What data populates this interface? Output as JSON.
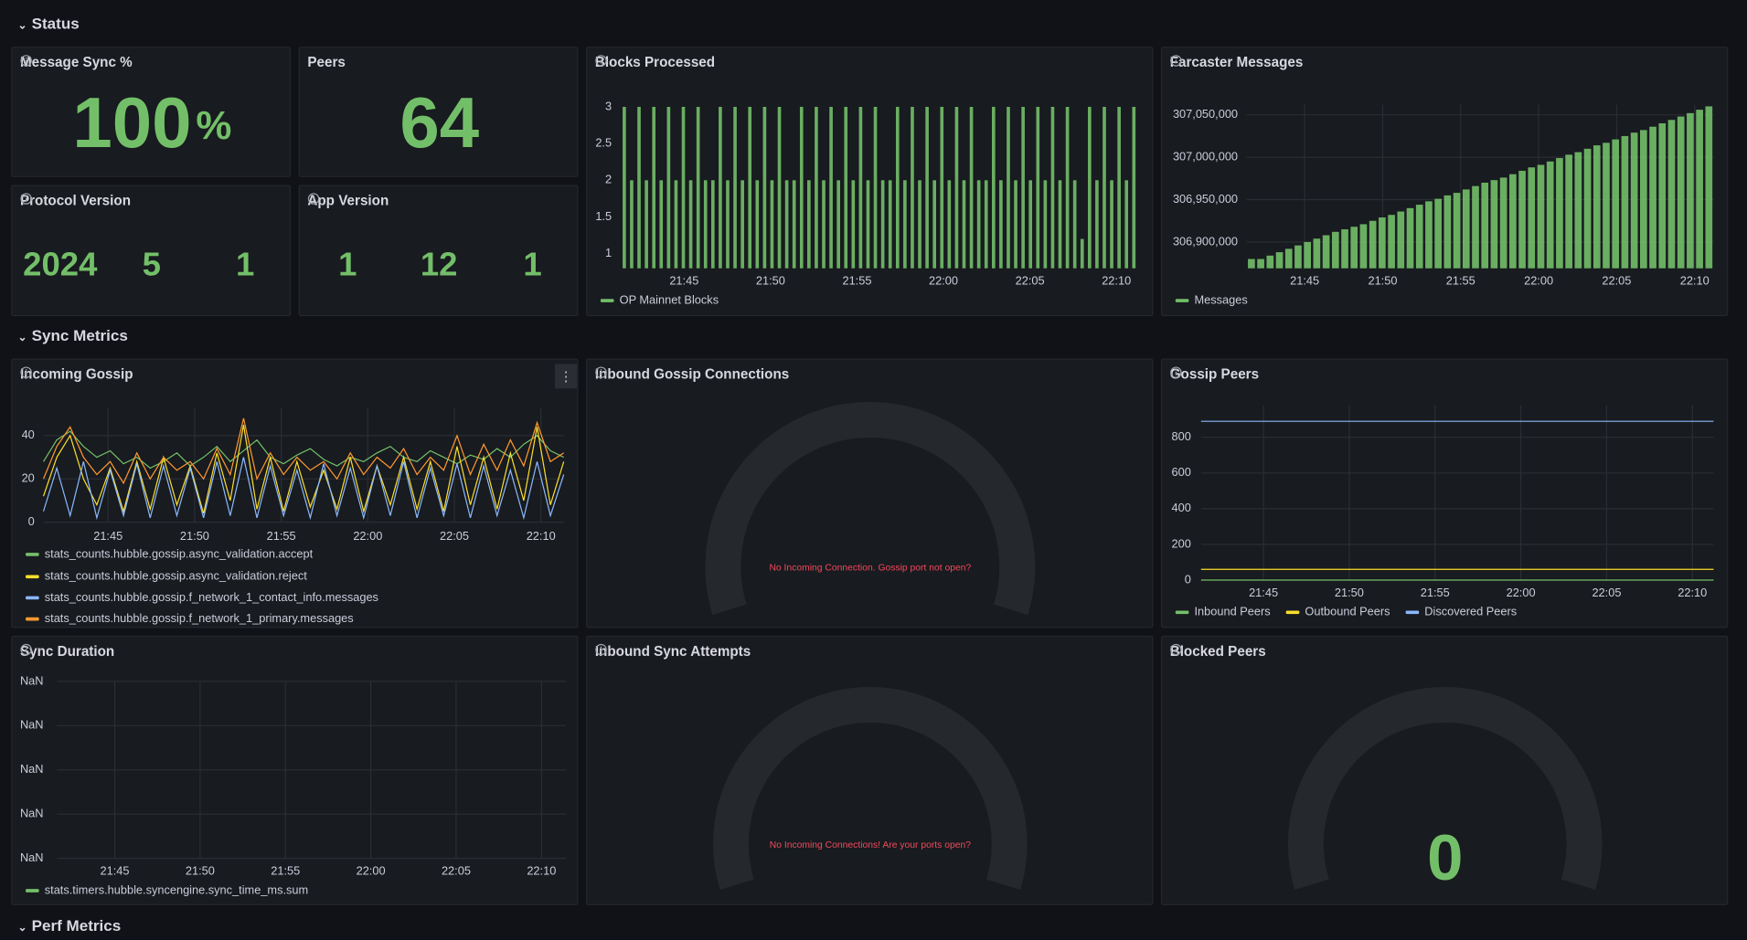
{
  "sections": [
    {
      "title": "Status"
    },
    {
      "title": "Sync Metrics"
    },
    {
      "title": "Perf Metrics"
    }
  ],
  "panels": [
    {
      "title": "Message Sync %",
      "type": "stat",
      "values": [
        100
      ],
      "unit": "%"
    },
    {
      "title": "Peers",
      "type": "stat",
      "values": [
        64
      ]
    },
    {
      "title": "Protocol Version",
      "type": "stat",
      "values": [
        2024,
        5,
        1
      ]
    },
    {
      "title": "App Version",
      "type": "stat",
      "values": [
        1,
        12,
        1
      ]
    },
    {
      "title": "Blocks Processed",
      "type": "bar",
      "xticks": [
        "21:45",
        "21:50",
        "21:55",
        "22:00",
        "22:05",
        "22:10"
      ],
      "ylim": [
        0.8,
        3.03
      ],
      "yticks": [
        1,
        1.5,
        2,
        2.5,
        3
      ],
      "grid": false,
      "series": [
        {
          "name": "OP Mainnet Blocks",
          "color": "#73bf69",
          "values": [
            3,
            2,
            3,
            2,
            3,
            2,
            3,
            2,
            3,
            2,
            3,
            2,
            2,
            3,
            2,
            3,
            2,
            3,
            2,
            3,
            2,
            3,
            2,
            2,
            3,
            2,
            3,
            2,
            3,
            2,
            3,
            2,
            3,
            2,
            3,
            2,
            2,
            3,
            2,
            3,
            2,
            3,
            2,
            3,
            2,
            3,
            2,
            3,
            2,
            2,
            3,
            2,
            3,
            2,
            3,
            2,
            3,
            2,
            3,
            2,
            3,
            2,
            1.2,
            3,
            2,
            3,
            2,
            3,
            2,
            3
          ]
        }
      ]
    },
    {
      "title": "Farcaster Messages",
      "type": "bar",
      "xticks": [
        "21:45",
        "21:50",
        "21:55",
        "22:00",
        "22:05",
        "22:10"
      ],
      "ylim": [
        306869000,
        307062000
      ],
      "yticks": [
        {
          "value": 306900000,
          "label": "306,900,000"
        },
        {
          "value": 306950000,
          "label": "306,950,000"
        },
        {
          "value": 307000000,
          "label": "307,000,000"
        },
        {
          "value": 307050000,
          "label": "307,050,000"
        }
      ],
      "grid": true,
      "series": [
        {
          "name": "Messages",
          "color": "#73bf69",
          "values": [
            306880000,
            306880000,
            306884000,
            306888000,
            306892000,
            306896000,
            306900000,
            306904000,
            306908000,
            306912000,
            306915000,
            306918000,
            306921000,
            306925000,
            306929000,
            306932000,
            306936000,
            306940000,
            306944000,
            306948000,
            306951000,
            306955000,
            306958000,
            306962000,
            306966000,
            306970000,
            306973000,
            306976000,
            306980000,
            306984000,
            306988000,
            306991000,
            306995000,
            306999000,
            307003000,
            307006000,
            307010000,
            307014000,
            307017000,
            307021000,
            307025000,
            307029000,
            307032000,
            307036000,
            307040000,
            307044000,
            307048000,
            307052000,
            307056000,
            307060000
          ]
        }
      ]
    },
    {
      "title": "Incoming Gossip",
      "type": "line",
      "xticks": [
        "21:45",
        "21:50",
        "21:55",
        "22:00",
        "22:05",
        "22:10"
      ],
      "ylim": [
        0,
        53
      ],
      "yticks": [
        0,
        20,
        40
      ],
      "grid": true,
      "series": [
        {
          "name": "stats_counts.hubble.gossip.async_validation.accept",
          "color": "#73bf69",
          "values": [
            28,
            38,
            42,
            35,
            30,
            33,
            27,
            30,
            25,
            28,
            32,
            26,
            30,
            35,
            28,
            33,
            38,
            30,
            27,
            31,
            34,
            29,
            26,
            30,
            28,
            32,
            35,
            30,
            28,
            33,
            30,
            27,
            31,
            29,
            34,
            30,
            36,
            40,
            33,
            30
          ]
        },
        {
          "name": "stats_counts.hubble.gossip.async_validation.reject",
          "color": "#fade2a",
          "values": [
            12,
            30,
            40,
            20,
            8,
            25,
            5,
            28,
            6,
            30,
            8,
            26,
            4,
            32,
            10,
            45,
            6,
            30,
            5,
            28,
            7,
            24,
            6,
            30,
            5,
            26,
            8,
            30,
            6,
            28,
            5,
            35,
            8,
            30,
            6,
            32,
            10,
            44,
            8,
            28
          ]
        },
        {
          "name": "stats_counts.hubble.gossip.f_network_1_contact_info.messages",
          "color": "#8ab8ff",
          "values": [
            5,
            25,
            3,
            28,
            2,
            24,
            3,
            27,
            2,
            26,
            3,
            25,
            2,
            28,
            3,
            30,
            2,
            26,
            3,
            24,
            2,
            27,
            3,
            25,
            2,
            26,
            3,
            28,
            2,
            25,
            3,
            27,
            2,
            26,
            3,
            24,
            2,
            28,
            3,
            22
          ]
        },
        {
          "name": "stats_counts.hubble.gossip.f_network_1_primary.messages",
          "color": "#ff9830",
          "values": [
            20,
            35,
            44,
            30,
            22,
            28,
            18,
            32,
            20,
            30,
            24,
            28,
            20,
            34,
            22,
            48,
            20,
            32,
            22,
            30,
            24,
            28,
            20,
            32,
            22,
            30,
            25,
            34,
            22,
            30,
            24,
            40,
            22,
            36,
            24,
            38,
            26,
            46,
            28,
            32
          ]
        }
      ]
    },
    {
      "title": "Inbound Gossip Connections",
      "type": "gauge",
      "message": "No Incoming Connection. Gossip port not open?"
    },
    {
      "title": "Gossip Peers",
      "type": "line",
      "xticks": [
        "21:45",
        "21:50",
        "21:55",
        "22:00",
        "22:05",
        "22:10"
      ],
      "ylim": [
        0,
        980
      ],
      "yticks": [
        0,
        200,
        400,
        600,
        800
      ],
      "grid": true,
      "series": [
        {
          "name": "Inbound Peers",
          "color": "#73bf69",
          "values": [
            0,
            0,
            0,
            0,
            0,
            0,
            0,
            0,
            0,
            0
          ]
        },
        {
          "name": "Outbound Peers",
          "color": "#fade2a",
          "values": [
            60,
            60,
            60,
            60,
            60,
            60,
            60,
            60,
            60,
            60
          ]
        },
        {
          "name": "Discovered Peers",
          "color": "#8ab8ff",
          "values": [
            890,
            890,
            890,
            890,
            890,
            890,
            890,
            890,
            890,
            890
          ]
        }
      ]
    },
    {
      "title": "Sync Duration",
      "type": "line",
      "xticks": [
        "21:45",
        "21:50",
        "21:55",
        "22:00",
        "22:05",
        "22:10"
      ],
      "yticks": [
        "NaN",
        "NaN",
        "NaN",
        "NaN",
        "NaN"
      ],
      "grid": true,
      "series": [
        {
          "name": "stats.timers.hubble.syncengine.sync_time_ms.sum",
          "color": "#73bf69"
        }
      ]
    },
    {
      "title": "Inbound Sync Attempts",
      "type": "gauge",
      "message": "No Incoming Connections! Are your ports open?"
    },
    {
      "title": "Blocked Peers",
      "type": "gauge",
      "values": [
        0
      ]
    }
  ]
}
